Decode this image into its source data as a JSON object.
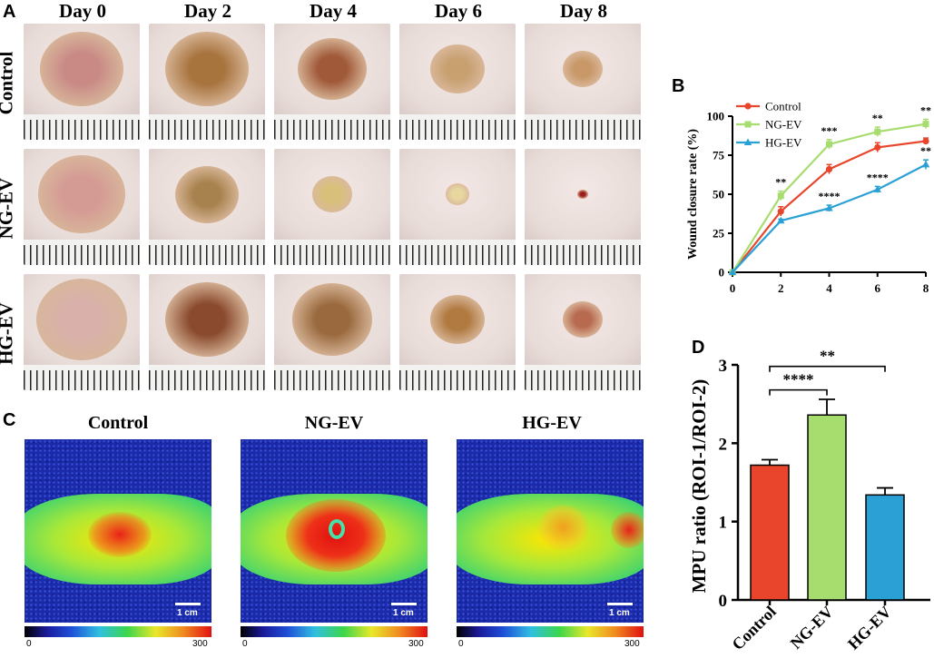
{
  "panels": {
    "a": "A",
    "b": "B",
    "c": "C",
    "d": "D"
  },
  "panel_a": {
    "days": [
      "Day 0",
      "Day 2",
      "Day 4",
      "Day 6",
      "Day 8"
    ],
    "groups": [
      "Control",
      "NG-EV",
      "HG-EV"
    ]
  },
  "panel_c": {
    "titles": [
      "Control",
      "NG-EV",
      "HG-EV"
    ],
    "scale_label": "1 cm",
    "colorbar_min": "0",
    "colorbar_max": "300"
  },
  "chart_data": [
    {
      "type": "line",
      "panel": "B",
      "xlabel": "",
      "ylabel": "Wound closure rate (%)",
      "x": [
        0,
        2,
        4,
        6,
        8
      ],
      "xticks": [
        "0",
        "2",
        "4",
        "6",
        "8"
      ],
      "yticks": [
        "0",
        "25",
        "50",
        "75",
        "100"
      ],
      "ylim": [
        0,
        100
      ],
      "xlim": [
        0,
        8
      ],
      "legend": "top-left",
      "series": [
        {
          "name": "Control",
          "color": "#e8452c",
          "marker": "circle",
          "values": [
            0,
            39,
            66,
            80,
            84
          ],
          "err": [
            0,
            3,
            3,
            3,
            2
          ]
        },
        {
          "name": "NG-EV",
          "color": "#a7dc6e",
          "marker": "square",
          "values": [
            0,
            49,
            82,
            90,
            95
          ],
          "err": [
            0,
            3,
            3,
            3,
            3
          ]
        },
        {
          "name": "HG-EV",
          "color": "#2aa0d4",
          "marker": "triangle",
          "values": [
            0,
            33,
            41,
            53,
            69
          ],
          "err": [
            0,
            1,
            2,
            2,
            3
          ]
        }
      ],
      "annotations": [
        {
          "x": 2,
          "text": "**"
        },
        {
          "x": 4,
          "text": "***"
        },
        {
          "x": 4,
          "text": "****"
        },
        {
          "x": 6,
          "text": "**"
        },
        {
          "x": 6,
          "text": "****"
        },
        {
          "x": 8,
          "text": "**"
        },
        {
          "x": 8,
          "text": "**"
        }
      ]
    },
    {
      "type": "bar",
      "panel": "D",
      "ylabel": "MPU ratio (ROI-1/ROI-2)",
      "categories": [
        "Control",
        "NG-EV",
        "HG-EV"
      ],
      "values": [
        1.72,
        2.36,
        1.34
      ],
      "err": [
        0.07,
        0.2,
        0.09
      ],
      "colors": [
        "#e8452c",
        "#a7dc6e",
        "#2aa0d4"
      ],
      "ylim": [
        0,
        3
      ],
      "yticks": [
        "0",
        "1",
        "2",
        "3"
      ],
      "significance": [
        {
          "from": "Control",
          "to": "NG-EV",
          "text": "****"
        },
        {
          "from": "Control",
          "to": "HG-EV",
          "text": "**"
        }
      ]
    }
  ]
}
